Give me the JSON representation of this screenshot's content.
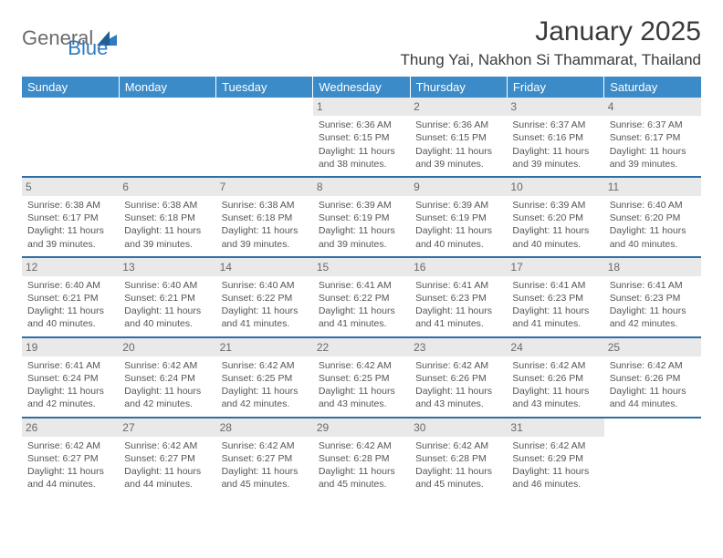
{
  "logo": {
    "text1": "General",
    "text2": "Blue"
  },
  "title": "January 2025",
  "location": "Thung Yai, Nakhon Si Thammarat, Thailand",
  "colors": {
    "header_bg": "#3b8bc8",
    "separator": "#2f6fa6",
    "daynum_bg": "#e9e9e9",
    "logo_gray": "#6b6b6b",
    "logo_blue": "#2f7bbf"
  },
  "weekdays": [
    "Sunday",
    "Monday",
    "Tuesday",
    "Wednesday",
    "Thursday",
    "Friday",
    "Saturday"
  ],
  "weeks": [
    [
      {
        "day": "",
        "lines": []
      },
      {
        "day": "",
        "lines": []
      },
      {
        "day": "",
        "lines": []
      },
      {
        "day": "1",
        "lines": [
          "Sunrise: 6:36 AM",
          "Sunset: 6:15 PM",
          "Daylight: 11 hours and 38 minutes."
        ]
      },
      {
        "day": "2",
        "lines": [
          "Sunrise: 6:36 AM",
          "Sunset: 6:15 PM",
          "Daylight: 11 hours and 39 minutes."
        ]
      },
      {
        "day": "3",
        "lines": [
          "Sunrise: 6:37 AM",
          "Sunset: 6:16 PM",
          "Daylight: 11 hours and 39 minutes."
        ]
      },
      {
        "day": "4",
        "lines": [
          "Sunrise: 6:37 AM",
          "Sunset: 6:17 PM",
          "Daylight: 11 hours and 39 minutes."
        ]
      }
    ],
    [
      {
        "day": "5",
        "lines": [
          "Sunrise: 6:38 AM",
          "Sunset: 6:17 PM",
          "Daylight: 11 hours and 39 minutes."
        ]
      },
      {
        "day": "6",
        "lines": [
          "Sunrise: 6:38 AM",
          "Sunset: 6:18 PM",
          "Daylight: 11 hours and 39 minutes."
        ]
      },
      {
        "day": "7",
        "lines": [
          "Sunrise: 6:38 AM",
          "Sunset: 6:18 PM",
          "Daylight: 11 hours and 39 minutes."
        ]
      },
      {
        "day": "8",
        "lines": [
          "Sunrise: 6:39 AM",
          "Sunset: 6:19 PM",
          "Daylight: 11 hours and 39 minutes."
        ]
      },
      {
        "day": "9",
        "lines": [
          "Sunrise: 6:39 AM",
          "Sunset: 6:19 PM",
          "Daylight: 11 hours and 40 minutes."
        ]
      },
      {
        "day": "10",
        "lines": [
          "Sunrise: 6:39 AM",
          "Sunset: 6:20 PM",
          "Daylight: 11 hours and 40 minutes."
        ]
      },
      {
        "day": "11",
        "lines": [
          "Sunrise: 6:40 AM",
          "Sunset: 6:20 PM",
          "Daylight: 11 hours and 40 minutes."
        ]
      }
    ],
    [
      {
        "day": "12",
        "lines": [
          "Sunrise: 6:40 AM",
          "Sunset: 6:21 PM",
          "Daylight: 11 hours and 40 minutes."
        ]
      },
      {
        "day": "13",
        "lines": [
          "Sunrise: 6:40 AM",
          "Sunset: 6:21 PM",
          "Daylight: 11 hours and 40 minutes."
        ]
      },
      {
        "day": "14",
        "lines": [
          "Sunrise: 6:40 AM",
          "Sunset: 6:22 PM",
          "Daylight: 11 hours and 41 minutes."
        ]
      },
      {
        "day": "15",
        "lines": [
          "Sunrise: 6:41 AM",
          "Sunset: 6:22 PM",
          "Daylight: 11 hours and 41 minutes."
        ]
      },
      {
        "day": "16",
        "lines": [
          "Sunrise: 6:41 AM",
          "Sunset: 6:23 PM",
          "Daylight: 11 hours and 41 minutes."
        ]
      },
      {
        "day": "17",
        "lines": [
          "Sunrise: 6:41 AM",
          "Sunset: 6:23 PM",
          "Daylight: 11 hours and 41 minutes."
        ]
      },
      {
        "day": "18",
        "lines": [
          "Sunrise: 6:41 AM",
          "Sunset: 6:23 PM",
          "Daylight: 11 hours and 42 minutes."
        ]
      }
    ],
    [
      {
        "day": "19",
        "lines": [
          "Sunrise: 6:41 AM",
          "Sunset: 6:24 PM",
          "Daylight: 11 hours and 42 minutes."
        ]
      },
      {
        "day": "20",
        "lines": [
          "Sunrise: 6:42 AM",
          "Sunset: 6:24 PM",
          "Daylight: 11 hours and 42 minutes."
        ]
      },
      {
        "day": "21",
        "lines": [
          "Sunrise: 6:42 AM",
          "Sunset: 6:25 PM",
          "Daylight: 11 hours and 42 minutes."
        ]
      },
      {
        "day": "22",
        "lines": [
          "Sunrise: 6:42 AM",
          "Sunset: 6:25 PM",
          "Daylight: 11 hours and 43 minutes."
        ]
      },
      {
        "day": "23",
        "lines": [
          "Sunrise: 6:42 AM",
          "Sunset: 6:26 PM",
          "Daylight: 11 hours and 43 minutes."
        ]
      },
      {
        "day": "24",
        "lines": [
          "Sunrise: 6:42 AM",
          "Sunset: 6:26 PM",
          "Daylight: 11 hours and 43 minutes."
        ]
      },
      {
        "day": "25",
        "lines": [
          "Sunrise: 6:42 AM",
          "Sunset: 6:26 PM",
          "Daylight: 11 hours and 44 minutes."
        ]
      }
    ],
    [
      {
        "day": "26",
        "lines": [
          "Sunrise: 6:42 AM",
          "Sunset: 6:27 PM",
          "Daylight: 11 hours and 44 minutes."
        ]
      },
      {
        "day": "27",
        "lines": [
          "Sunrise: 6:42 AM",
          "Sunset: 6:27 PM",
          "Daylight: 11 hours and 44 minutes."
        ]
      },
      {
        "day": "28",
        "lines": [
          "Sunrise: 6:42 AM",
          "Sunset: 6:27 PM",
          "Daylight: 11 hours and 45 minutes."
        ]
      },
      {
        "day": "29",
        "lines": [
          "Sunrise: 6:42 AM",
          "Sunset: 6:28 PM",
          "Daylight: 11 hours and 45 minutes."
        ]
      },
      {
        "day": "30",
        "lines": [
          "Sunrise: 6:42 AM",
          "Sunset: 6:28 PM",
          "Daylight: 11 hours and 45 minutes."
        ]
      },
      {
        "day": "31",
        "lines": [
          "Sunrise: 6:42 AM",
          "Sunset: 6:29 PM",
          "Daylight: 11 hours and 46 minutes."
        ]
      },
      {
        "day": "",
        "lines": []
      }
    ]
  ]
}
